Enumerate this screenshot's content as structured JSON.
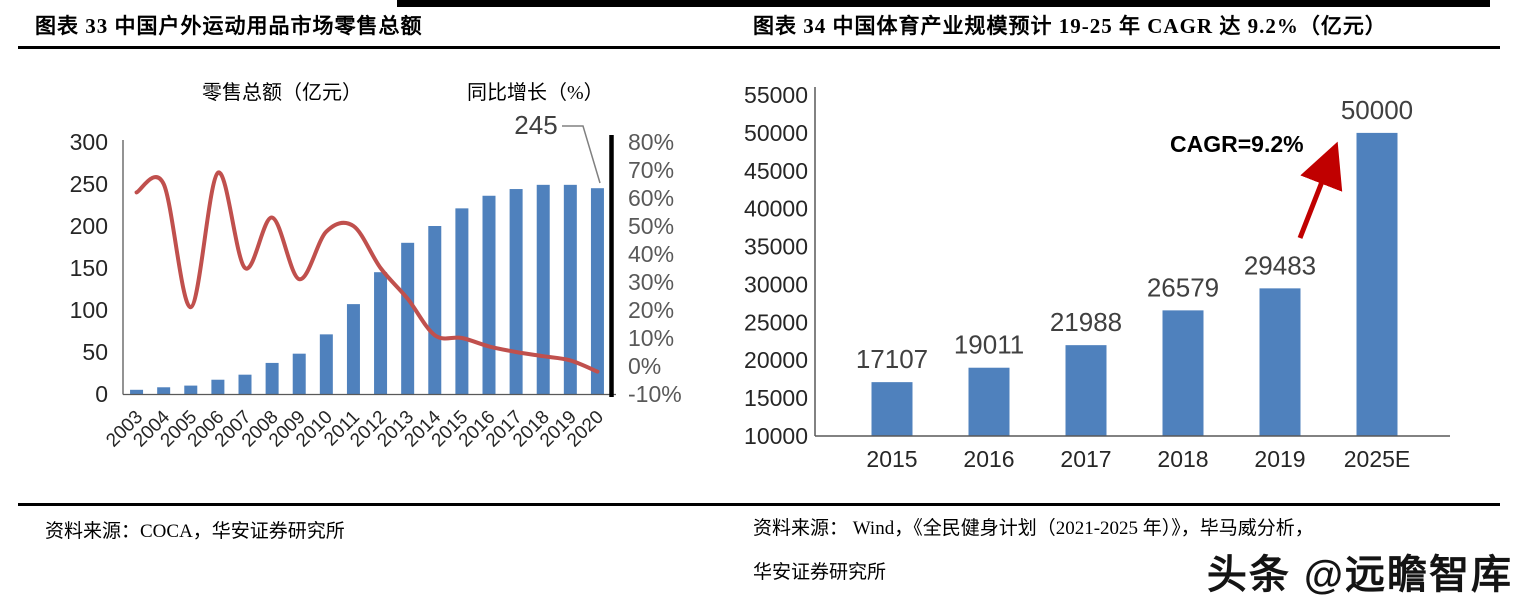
{
  "left": {
    "title": "图表 33 中国户外运动用品市场零售总额",
    "legend_bar_label": "零售总额（亿元）",
    "legend_line_label": "同比增长（%）",
    "annotation_label": "245",
    "source": "资料来源：COCA，华安证券研究所"
  },
  "right": {
    "title": "图表 34 中国体育产业规模预计 19-25 年 CAGR 达 9.2%（亿元）",
    "cagr_label": "CAGR=9.2%",
    "source_line1": "资料来源： Wind，《全民健身计划（2021-2025 年）》，毕马威分析，",
    "source_line2": "华安证券研究所"
  },
  "watermark": "头条 @远瞻智库",
  "colors": {
    "bar_blue": "#4F81BD",
    "line_red": "#C0504D",
    "arrow_red": "#C00000",
    "axis_gray": "#595959",
    "label_gray": "#404040"
  },
  "chart_data": [
    {
      "type": "bar",
      "title": "中国户外运动用品市场零售总额",
      "categories": [
        "2003",
        "2004",
        "2005",
        "2006",
        "2007",
        "2008",
        "2009",
        "2010",
        "2011",
        "2012",
        "2013",
        "2014",
        "2015",
        "2016",
        "2017",
        "2018",
        "2019",
        "2020"
      ],
      "series": [
        {
          "name": "零售总额（亿元）",
          "type": "bar",
          "axis": "left",
          "color": "#4F81BD",
          "values": [
            5,
            8,
            10,
            17,
            23,
            37,
            48,
            71,
            107,
            145,
            180,
            200,
            221,
            236,
            244,
            249,
            249,
            245
          ]
        },
        {
          "name": "同比增长（%）",
          "type": "line",
          "axis": "right",
          "color": "#C0504D",
          "values": [
            62,
            65,
            21,
            69,
            35,
            53,
            31,
            48,
            50,
            35,
            24,
            11,
            10,
            7,
            5,
            3.5,
            2,
            -2
          ]
        }
      ],
      "left_axis": {
        "min": 0,
        "max": 300,
        "step": 50,
        "ticks": [
          300,
          250,
          200,
          150,
          100,
          50,
          0
        ]
      },
      "right_axis": {
        "min": -10,
        "max": 80,
        "step": 10,
        "ticks": [
          "80%",
          "70%",
          "60%",
          "50%",
          "40%",
          "30%",
          "20%",
          "10%",
          "0%",
          "-10%"
        ],
        "tick_values": [
          80,
          70,
          60,
          50,
          40,
          30,
          20,
          10,
          0,
          -10
        ]
      },
      "annotation": {
        "label": "245",
        "category": "2020"
      },
      "grid": false,
      "legend_position": "top"
    },
    {
      "type": "bar",
      "title": "中国体育产业规模预计 19-25 年 CAGR 达 9.2%（亿元）",
      "categories": [
        "2015",
        "2016",
        "2017",
        "2018",
        "2019",
        "2025E"
      ],
      "values": [
        17107,
        19011,
        21988,
        26579,
        29483,
        50000
      ],
      "bar_color": "#4F81BD",
      "ylim": [
        10000,
        55000
      ],
      "yticks": [
        55000,
        50000,
        45000,
        40000,
        35000,
        30000,
        25000,
        20000,
        15000,
        10000
      ],
      "annotation": {
        "label": "CAGR=9.2%",
        "arrow": "red, pointing from above 2019 bar to top of 2025E bar"
      },
      "grid": false
    }
  ]
}
